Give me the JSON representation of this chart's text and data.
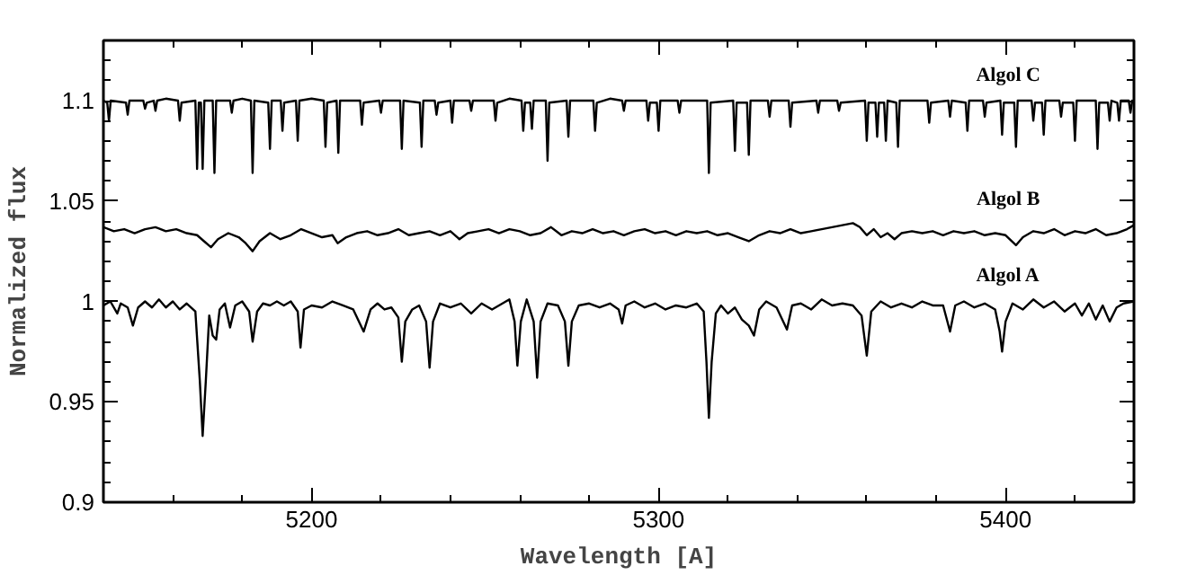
{
  "chart_data": {
    "type": "line",
    "xlabel": "Wavelength [A]",
    "ylabel": "Normalized flux",
    "xlim": [
      5140,
      5437
    ],
    "ylim": [
      0.9,
      1.13
    ],
    "xticks": [
      {
        "value": 5140,
        "label": null
      },
      {
        "value": 5160,
        "label": null
      },
      {
        "value": 5180,
        "label": null
      },
      5200,
      {
        "value": 5220,
        "label": null
      },
      {
        "value": 5240,
        "label": null
      },
      {
        "value": 5260,
        "label": null
      },
      {
        "value": 5280,
        "label": null
      },
      5300,
      {
        "value": 5320,
        "label": null
      },
      {
        "value": 5340,
        "label": null
      },
      {
        "value": 5360,
        "label": null
      },
      {
        "value": 5380,
        "label": null
      },
      5400,
      {
        "value": 5420,
        "label": null
      }
    ],
    "yticks": [
      0.9,
      {
        "value": 0.91,
        "label": null
      },
      {
        "value": 0.92,
        "label": null
      },
      {
        "value": 0.93,
        "label": null
      },
      {
        "value": 0.94,
        "label": null
      },
      0.95,
      {
        "value": 0.96,
        "label": null
      },
      {
        "value": 0.97,
        "label": null
      },
      {
        "value": 0.98,
        "label": null
      },
      {
        "value": 0.99,
        "label": null
      },
      1,
      {
        "value": 1.01,
        "label": null
      },
      {
        "value": 1.02,
        "label": null
      },
      {
        "value": 1.03,
        "label": null
      },
      {
        "value": 1.04,
        "label": null
      },
      1.05,
      {
        "value": 1.06,
        "label": null
      },
      {
        "value": 1.07,
        "label": null
      },
      {
        "value": 1.08,
        "label": null
      },
      {
        "value": 1.09,
        "label": null
      },
      1.1,
      {
        "value": 1.11,
        "label": null
      },
      {
        "value": 1.12,
        "label": null
      }
    ],
    "line_style": "solid",
    "series": [
      {
        "name": "Algol C",
        "color": "#000000",
        "x": [
          5140,
          5141.1,
          5141.6,
          5142.1,
          5146.5,
          5147,
          5147.5,
          5151.5,
          5152,
          5152.5,
          5154.5,
          5155,
          5155.5,
          5158,
          5161.5,
          5162,
          5162.5,
          5166.5,
          5167,
          5167.5,
          5168.1,
          5168.6,
          5169.1,
          5171.5,
          5172,
          5172.5,
          5176.5,
          5177,
          5177.5,
          5180,
          5182.5,
          5183,
          5183.5,
          5187.5,
          5188,
          5188.5,
          5191.1,
          5191.6,
          5192.1,
          5195.5,
          5196,
          5196.5,
          5200,
          5203.5,
          5204,
          5204.5,
          5207.2,
          5207.7,
          5208.2,
          5214,
          5214.5,
          5215,
          5219.5,
          5220,
          5220.5,
          5225.5,
          5226,
          5226.5,
          5231.2,
          5231.7,
          5232.2,
          5235.5,
          5236,
          5236.5,
          5240,
          5240.5,
          5241,
          5245.5,
          5246,
          5246.5,
          5252.5,
          5253,
          5253.5,
          5257,
          5260.5,
          5261,
          5261.5,
          5263,
          5263.5,
          5264,
          5267.5,
          5268,
          5268.5,
          5273.5,
          5274,
          5274.5,
          5281.2,
          5281.7,
          5282.2,
          5286,
          5289.5,
          5290,
          5290.5,
          5296.5,
          5297,
          5297.5,
          5299.5,
          5300,
          5300.5,
          5305.5,
          5306,
          5306.5,
          5314,
          5314.5,
          5315,
          5321.5,
          5322,
          5322.5,
          5325.5,
          5326,
          5326.5,
          5331.5,
          5332,
          5332.5,
          5337.5,
          5338,
          5338.5,
          5345.5,
          5346,
          5346.5,
          5351.5,
          5352,
          5352.5,
          5359.5,
          5360,
          5360.5,
          5362.5,
          5363,
          5363.5,
          5365,
          5365.5,
          5366,
          5368.5,
          5369,
          5369.5,
          5377.5,
          5378,
          5378.5,
          5383.5,
          5384,
          5384.5,
          5388.5,
          5389,
          5389.5,
          5393.5,
          5394,
          5394.5,
          5398.5,
          5399,
          5399.5,
          5402.5,
          5403,
          5403.5,
          5407.5,
          5408,
          5408.5,
          5410.5,
          5411,
          5411.5,
          5415.5,
          5416,
          5416.5,
          5419.5,
          5420,
          5420.5,
          5426,
          5426.5,
          5427,
          5429.5,
          5430,
          5430.5,
          5432.2,
          5432.7,
          5433.2,
          5435.5,
          5436,
          5436.5,
          5437
        ],
        "values": [
          1.1,
          1.099,
          1.09,
          1.1,
          1.099,
          1.093,
          1.1,
          1.1,
          1.096,
          1.099,
          1.1,
          1.095,
          1.1,
          1.101,
          1.1,
          1.09,
          1.099,
          1.1,
          1.066,
          1.099,
          1.099,
          1.066,
          1.1,
          1.1,
          1.064,
          1.1,
          1.1,
          1.094,
          1.1,
          1.101,
          1.1,
          1.064,
          1.1,
          1.099,
          1.076,
          1.1,
          1.1,
          1.085,
          1.099,
          1.1,
          1.08,
          1.1,
          1.101,
          1.1,
          1.077,
          1.099,
          1.1,
          1.074,
          1.1,
          1.1,
          1.088,
          1.099,
          1.1,
          1.094,
          1.1,
          1.1,
          1.076,
          1.1,
          1.099,
          1.077,
          1.1,
          1.1,
          1.093,
          1.099,
          1.1,
          1.089,
          1.1,
          1.1,
          1.095,
          1.1,
          1.1,
          1.09,
          1.099,
          1.101,
          1.1,
          1.085,
          1.099,
          1.099,
          1.086,
          1.1,
          1.1,
          1.07,
          1.099,
          1.1,
          1.082,
          1.1,
          1.1,
          1.085,
          1.099,
          1.101,
          1.1,
          1.095,
          1.1,
          1.1,
          1.09,
          1.099,
          1.099,
          1.085,
          1.1,
          1.1,
          1.094,
          1.1,
          1.1,
          1.064,
          1.099,
          1.1,
          1.075,
          1.099,
          1.099,
          1.073,
          1.1,
          1.1,
          1.092,
          1.1,
          1.1,
          1.087,
          1.099,
          1.1,
          1.094,
          1.1,
          1.1,
          1.095,
          1.099,
          1.1,
          1.08,
          1.099,
          1.099,
          1.082,
          1.099,
          1.099,
          1.08,
          1.1,
          1.099,
          1.077,
          1.1,
          1.1,
          1.089,
          1.099,
          1.1,
          1.092,
          1.1,
          1.099,
          1.085,
          1.1,
          1.1,
          1.092,
          1.099,
          1.1,
          1.083,
          1.099,
          1.099,
          1.077,
          1.1,
          1.1,
          1.09,
          1.099,
          1.099,
          1.083,
          1.1,
          1.1,
          1.092,
          1.099,
          1.099,
          1.08,
          1.1,
          1.1,
          1.076,
          1.099,
          1.099,
          1.09,
          1.1,
          1.099,
          1.09,
          1.1,
          1.1,
          1.094,
          1.1,
          1.099
        ]
      },
      {
        "name": "Algol B",
        "color": "#000000",
        "x": [
          5140,
          5143,
          5146,
          5149,
          5152,
          5155,
          5158,
          5161,
          5164,
          5167,
          5169,
          5171,
          5173,
          5176,
          5179,
          5181,
          5183,
          5185,
          5188,
          5191,
          5194,
          5197,
          5200,
          5203,
          5206,
          5207.5,
          5210,
          5213,
          5216,
          5219,
          5222,
          5225,
          5228,
          5231,
          5234,
          5237,
          5240,
          5242.6,
          5245,
          5248,
          5251,
          5254,
          5257,
          5260,
          5263,
          5266,
          5269,
          5272,
          5275,
          5278,
          5281,
          5284,
          5287,
          5290,
          5293,
          5296,
          5299,
          5302,
          5305,
          5308,
          5311,
          5314,
          5317,
          5320,
          5323,
          5326,
          5329,
          5332,
          5335,
          5338,
          5341,
          5344,
          5347,
          5350,
          5353,
          5356,
          5358,
          5360,
          5362,
          5364,
          5366,
          5368,
          5370,
          5373,
          5376,
          5379,
          5382,
          5385,
          5388,
          5391,
          5394,
          5397,
          5400,
          5403,
          5405,
          5408,
          5411,
          5414,
          5417,
          5420,
          5423,
          5426,
          5429,
          5432,
          5435,
          5437
        ],
        "values": [
          1.037,
          1.035,
          1.036,
          1.034,
          1.036,
          1.037,
          1.035,
          1.036,
          1.034,
          1.033,
          1.03,
          1.027,
          1.031,
          1.034,
          1.032,
          1.029,
          1.025,
          1.03,
          1.034,
          1.031,
          1.033,
          1.036,
          1.034,
          1.032,
          1.033,
          1.029,
          1.032,
          1.034,
          1.035,
          1.033,
          1.034,
          1.036,
          1.033,
          1.034,
          1.035,
          1.033,
          1.035,
          1.031,
          1.034,
          1.035,
          1.036,
          1.034,
          1.036,
          1.035,
          1.033,
          1.034,
          1.037,
          1.033,
          1.035,
          1.034,
          1.036,
          1.034,
          1.035,
          1.033,
          1.035,
          1.036,
          1.034,
          1.035,
          1.033,
          1.035,
          1.034,
          1.035,
          1.033,
          1.034,
          1.032,
          1.03,
          1.033,
          1.035,
          1.034,
          1.036,
          1.034,
          1.035,
          1.036,
          1.037,
          1.038,
          1.039,
          1.037,
          1.033,
          1.036,
          1.032,
          1.034,
          1.031,
          1.034,
          1.035,
          1.034,
          1.035,
          1.033,
          1.035,
          1.034,
          1.035,
          1.033,
          1.034,
          1.033,
          1.028,
          1.032,
          1.035,
          1.034,
          1.036,
          1.033,
          1.035,
          1.034,
          1.036,
          1.033,
          1.034,
          1.036,
          1.038
        ]
      },
      {
        "name": "Algol A",
        "color": "#000000",
        "x": [
          5140,
          5142,
          5144,
          5145,
          5147,
          5148.5,
          5150,
          5152,
          5154,
          5156,
          5158,
          5160,
          5162,
          5164,
          5166.5,
          5167.8,
          5168.6,
          5169.5,
          5170.5,
          5171.5,
          5172.5,
          5173.5,
          5175,
          5176.5,
          5178,
          5180,
          5182,
          5183,
          5184.3,
          5186,
          5188,
          5190,
          5192,
          5194,
          5196,
          5196.8,
          5197.8,
          5200,
          5203,
          5206,
          5209,
          5212,
          5215,
          5217,
          5219,
          5221,
          5223,
          5225,
          5226,
          5227,
          5229,
          5231,
          5233,
          5234,
          5235,
          5237,
          5240,
          5243,
          5246,
          5249,
          5252,
          5255,
          5257,
          5258.5,
          5259.3,
          5260.3,
          5262,
          5264,
          5265,
          5266,
          5268,
          5271,
          5273,
          5274,
          5275,
          5277,
          5280,
          5283,
          5286,
          5288.5,
          5289.5,
          5290.5,
          5293,
          5296,
          5299,
          5302,
          5305,
          5308,
          5311,
          5313,
          5313.8,
          5314.5,
          5315.3,
          5316.5,
          5318,
          5320,
          5322,
          5324,
          5326,
          5327.5,
          5329,
          5331,
          5334,
          5337,
          5338.5,
          5341,
          5344,
          5347,
          5350,
          5353,
          5356,
          5358.5,
          5360,
          5361.3,
          5364,
          5367,
          5370,
          5373,
          5376,
          5379,
          5382,
          5384,
          5385.5,
          5388,
          5391,
          5394,
          5397,
          5398.3,
          5399,
          5400,
          5402,
          5405,
          5408,
          5411,
          5414,
          5417,
          5420,
          5422,
          5424,
          5426,
          5428,
          5430,
          5432,
          5434,
          5437
        ],
        "values": [
          0.998,
          1.0,
          0.994,
          0.999,
          0.997,
          0.988,
          0.997,
          1.0,
          0.997,
          1.001,
          0.997,
          1.0,
          0.996,
          0.999,
          0.995,
          0.96,
          0.933,
          0.96,
          0.993,
          0.983,
          0.981,
          0.996,
          0.999,
          0.987,
          0.998,
          1.0,
          0.995,
          0.98,
          0.995,
          0.999,
          0.998,
          1.0,
          0.998,
          1.0,
          0.995,
          0.977,
          0.996,
          0.998,
          0.997,
          1.0,
          0.998,
          0.996,
          0.985,
          0.996,
          0.999,
          0.996,
          0.997,
          0.992,
          0.97,
          0.99,
          0.996,
          0.998,
          0.99,
          0.967,
          0.99,
          0.999,
          0.997,
          0.999,
          0.994,
          0.999,
          0.996,
          0.999,
          1.001,
          0.99,
          0.968,
          0.99,
          1.001,
          0.99,
          0.962,
          0.99,
          0.999,
          0.998,
          0.99,
          0.968,
          0.99,
          0.998,
          0.999,
          0.997,
          0.999,
          0.996,
          0.989,
          0.998,
          1.0,
          0.997,
          0.999,
          0.996,
          0.998,
          0.997,
          0.999,
          0.995,
          0.97,
          0.942,
          0.97,
          0.994,
          0.998,
          0.994,
          0.997,
          0.991,
          0.988,
          0.983,
          0.996,
          1.0,
          0.997,
          0.986,
          0.998,
          0.999,
          0.996,
          1.001,
          0.998,
          0.999,
          0.998,
          0.993,
          0.973,
          0.995,
          1.0,
          0.997,
          0.999,
          0.997,
          1.0,
          0.998,
          0.998,
          0.985,
          0.998,
          1.0,
          0.997,
          0.999,
          0.996,
          0.985,
          0.975,
          0.99,
          0.999,
          0.996,
          1.001,
          0.997,
          1.0,
          0.995,
          0.999,
          0.993,
          0.999,
          0.991,
          0.998,
          0.99,
          0.997,
          0.999,
          1.0
        ]
      }
    ]
  }
}
